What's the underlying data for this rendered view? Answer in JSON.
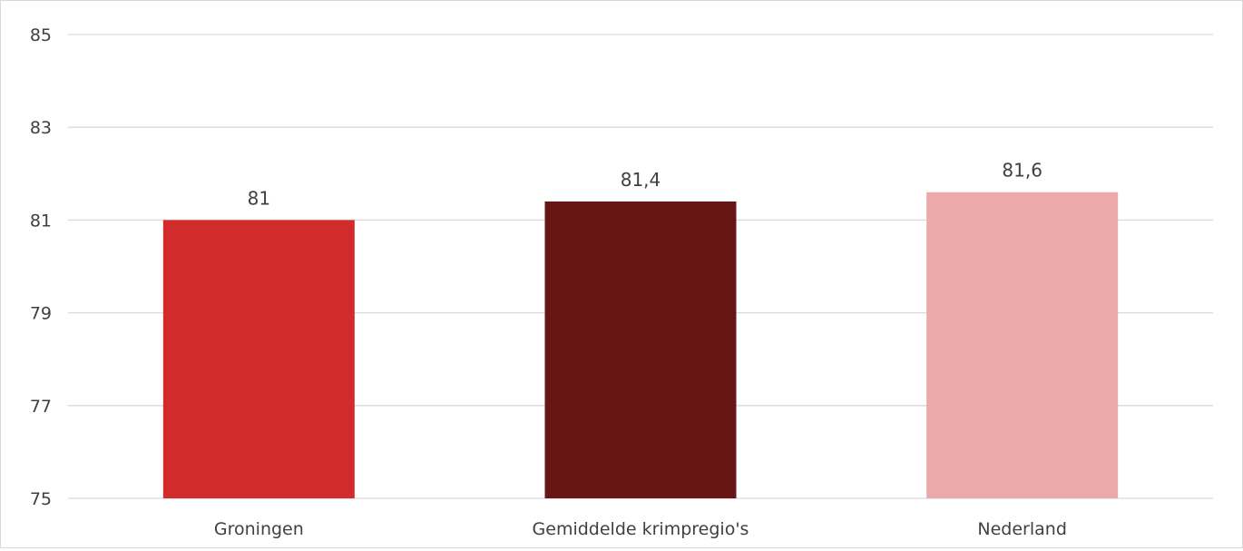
{
  "chart_data": {
    "type": "bar",
    "categories": [
      "Groningen",
      "Gemiddelde krimpregio's",
      "Nederland"
    ],
    "values": [
      81,
      81.4,
      81.6
    ],
    "data_labels": [
      "81",
      "81,4",
      "81,6"
    ],
    "colors": [
      "#d22b2b",
      "#671515",
      "#eca9a9"
    ],
    "title": "",
    "xlabel": "",
    "ylabel": "",
    "ylim": [
      75,
      85
    ],
    "yticks": [
      75,
      77,
      79,
      81,
      83,
      85
    ],
    "ytick_labels": [
      "75",
      "77",
      "79",
      "81",
      "83",
      "85"
    ],
    "grid": true,
    "legend": "none"
  },
  "style": {
    "gridline_color": "#d9d9d9",
    "text_color": "#404040"
  }
}
